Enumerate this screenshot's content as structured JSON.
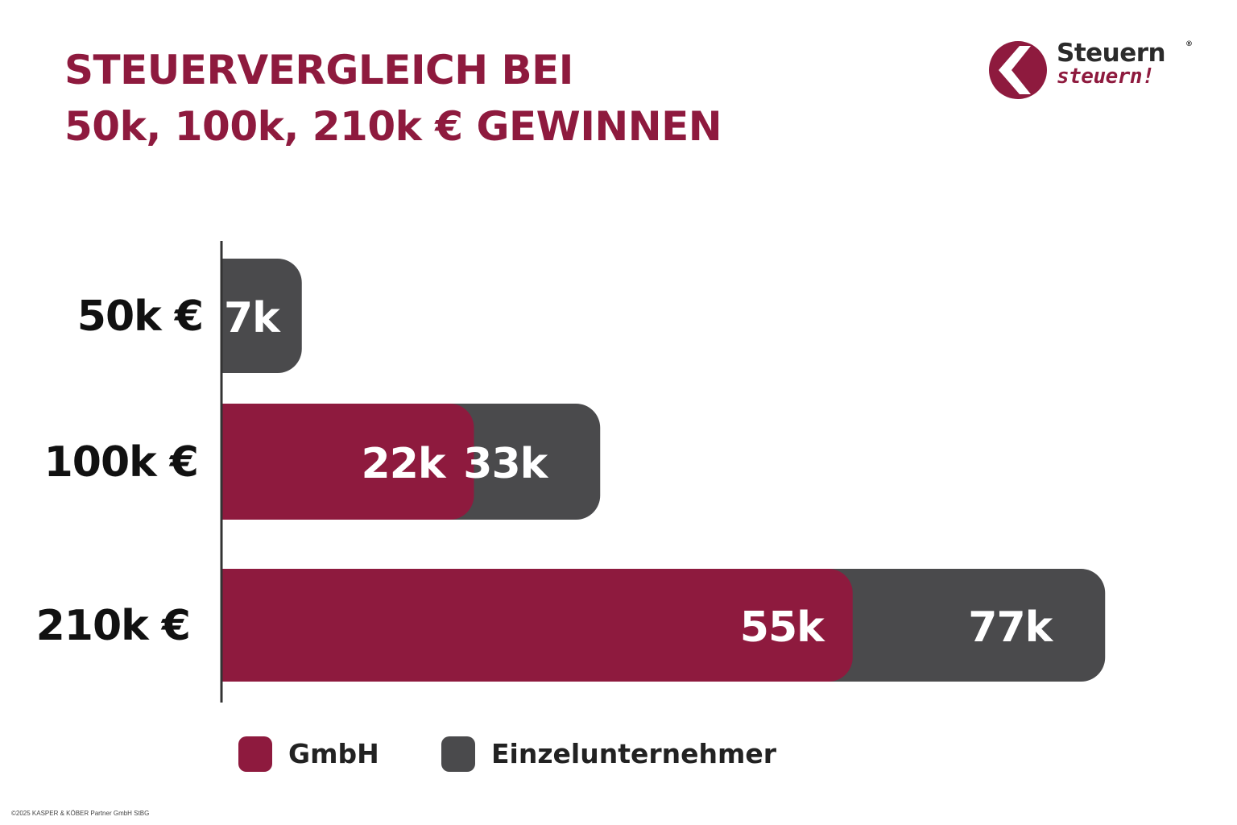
{
  "title": {
    "line1": "STEUERVERGLEICH BEI",
    "line2": "50k, 100k, 210k € GEWINNEN"
  },
  "logo": {
    "line1": "Steuern",
    "registered": "®",
    "line2": "steuern!"
  },
  "colors": {
    "brand": "#8e1a3e",
    "gmbh": "#8e1a3e",
    "einzel": "#4a4a4c",
    "axis": "#333333"
  },
  "chart_data": {
    "type": "bar",
    "orientation": "horizontal",
    "stacking": "overlay",
    "categories": [
      "50k €",
      "100k €",
      "210k €"
    ],
    "series": [
      {
        "name": "Einzelunternehmer",
        "values": [
          7,
          33,
          77
        ],
        "labels": [
          "7k",
          "33k",
          "77k"
        ],
        "color": "#4a4a4c"
      },
      {
        "name": "GmbH",
        "values": [
          null,
          22,
          55
        ],
        "labels": [
          "",
          "22k",
          "55k"
        ],
        "color": "#8e1a3e"
      }
    ],
    "xlim": [
      0,
      80
    ],
    "grid": false,
    "legend_position": "bottom"
  },
  "legend": [
    {
      "label": "GmbH",
      "color": "#8e1a3e"
    },
    {
      "label": "Einzelunternehmer",
      "color": "#4a4a4c"
    }
  ],
  "footer": "©2025 KASPER & KÖBER Partner GmbH StBG"
}
